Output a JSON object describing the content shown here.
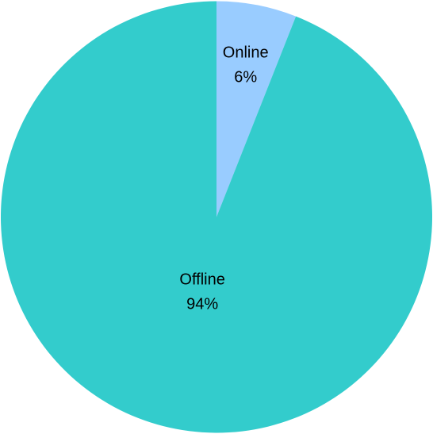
{
  "chart_data": {
    "type": "pie",
    "categories": [
      "Online",
      "Offline"
    ],
    "values": [
      6,
      94
    ],
    "data_labels": [
      "6%",
      "94%"
    ],
    "colors": [
      "#99ccff",
      "#33cccc"
    ],
    "start_angle": "12 o'clock",
    "direction": "clockwise",
    "legend": "none",
    "title": ""
  }
}
